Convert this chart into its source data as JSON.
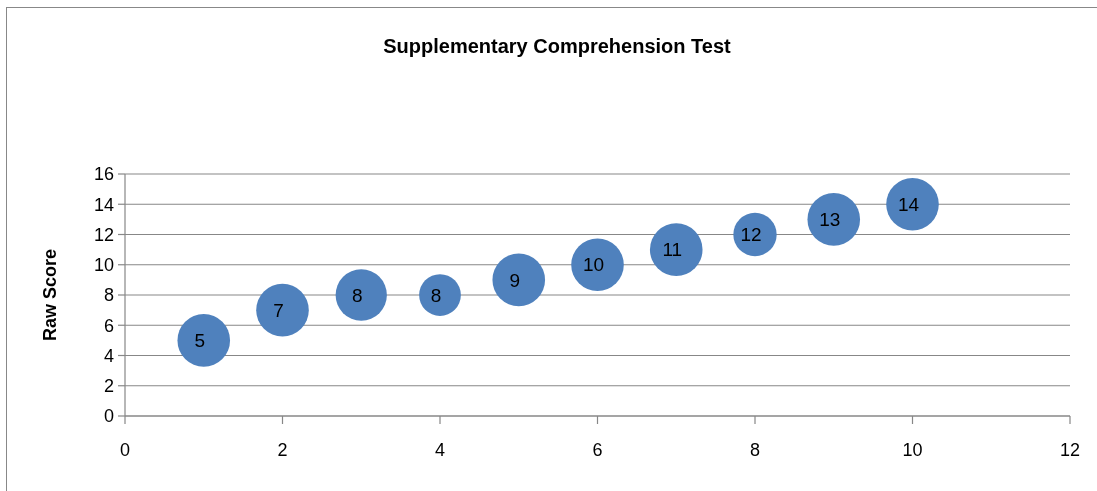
{
  "chart_data": {
    "type": "bubble",
    "title": "Supplementary Comprehension Test",
    "ylabel": "Raw Score",
    "x": [
      1,
      2,
      3,
      4,
      5,
      6,
      7,
      8,
      9,
      10
    ],
    "series": [
      {
        "color": "#4f81bd",
        "values": [
          5,
          7,
          8,
          8,
          9,
          10,
          11,
          12,
          13,
          14
        ],
        "sizes": [
          1,
          1,
          0.95,
          0.63,
          1,
          1,
          1,
          0.68,
          1,
          1
        ]
      }
    ],
    "xlim": [
      0,
      12
    ],
    "xticks": [
      0,
      2,
      4,
      6,
      8,
      10,
      12
    ],
    "ylim": [
      0,
      16
    ],
    "yticks": [
      0,
      2,
      4,
      6,
      8,
      10,
      12,
      14,
      16
    ],
    "grid": "y",
    "data_labels": true
  }
}
